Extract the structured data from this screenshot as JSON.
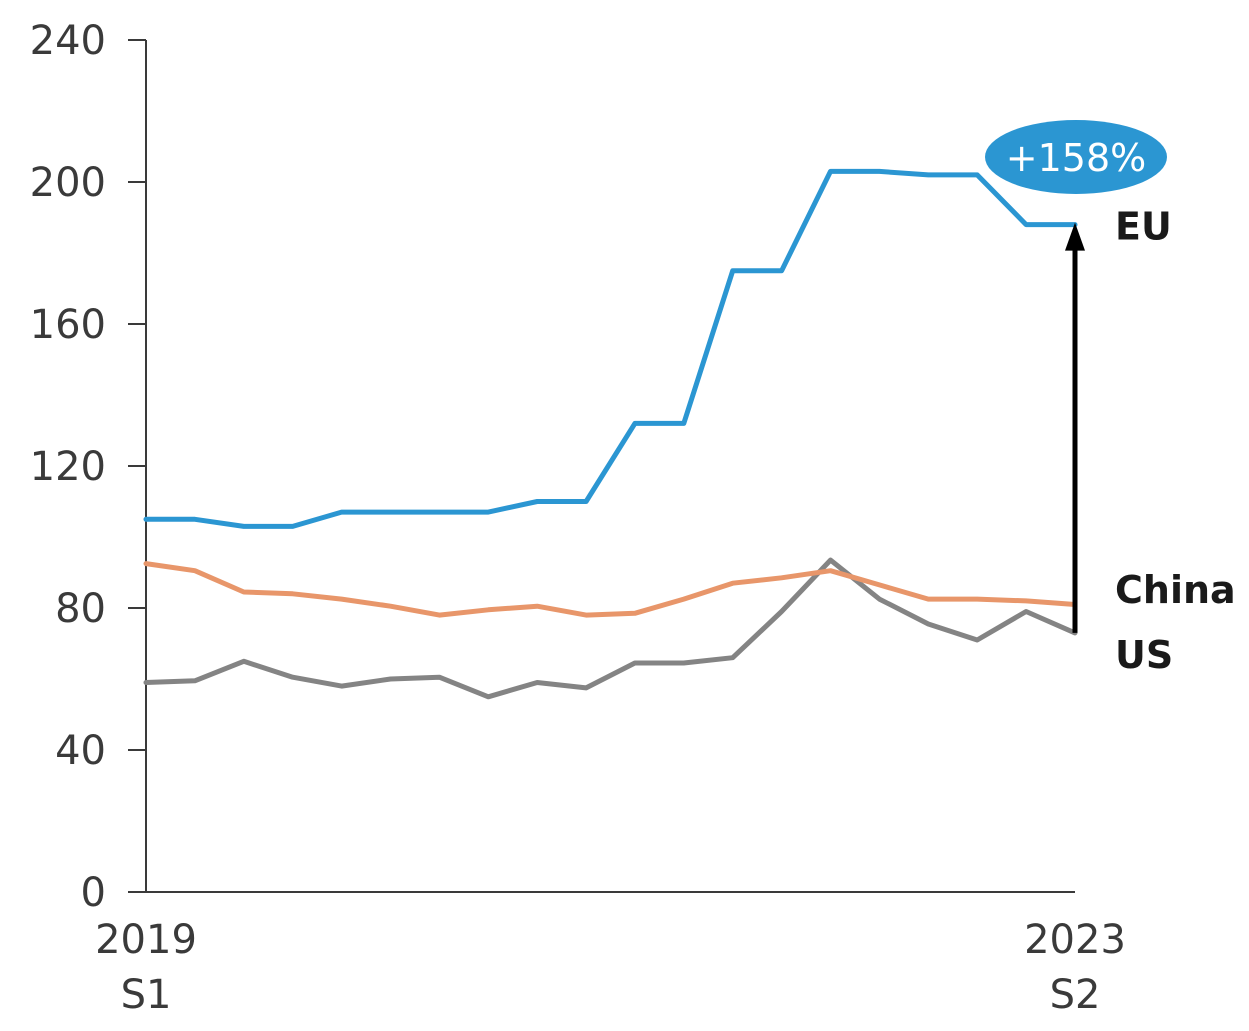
{
  "chart_data": {
    "type": "line",
    "title": "",
    "xlabel": "",
    "ylabel": "",
    "ylim": [
      0,
      240
    ],
    "yticks": [
      0,
      40,
      80,
      120,
      160,
      200,
      240
    ],
    "x_tick_labels": [
      {
        "line1": "2019",
        "line2": "S1"
      },
      {
        "line1": "2023",
        "line2": "S2"
      }
    ],
    "points_count": 20,
    "grid": false,
    "series": [
      {
        "name": "EU",
        "color": "#2b96d2",
        "values": [
          105,
          105,
          103,
          103,
          107,
          107,
          107,
          107,
          110,
          110,
          132,
          132,
          175,
          175,
          203,
          203,
          202,
          202,
          188,
          188
        ]
      },
      {
        "name": "China",
        "color": "#e8966a",
        "values": [
          92.5,
          90.5,
          84.5,
          84,
          82.5,
          80.5,
          78,
          79.5,
          80.5,
          78,
          78.5,
          82.5,
          87,
          88.5,
          90.5,
          86.5,
          82.5,
          82.5,
          82,
          81
        ]
      },
      {
        "name": "US",
        "color": "#848484",
        "values": [
          59,
          59.5,
          65,
          60.5,
          58,
          60,
          60.5,
          55,
          59,
          57.5,
          64.5,
          64.5,
          66,
          79,
          93.5,
          82.5,
          75.5,
          71,
          79,
          73
        ]
      }
    ],
    "annotation": {
      "text": "+158%",
      "color": "#2b96d2",
      "arrow_from_series": "US",
      "arrow_to_series": "EU"
    }
  }
}
